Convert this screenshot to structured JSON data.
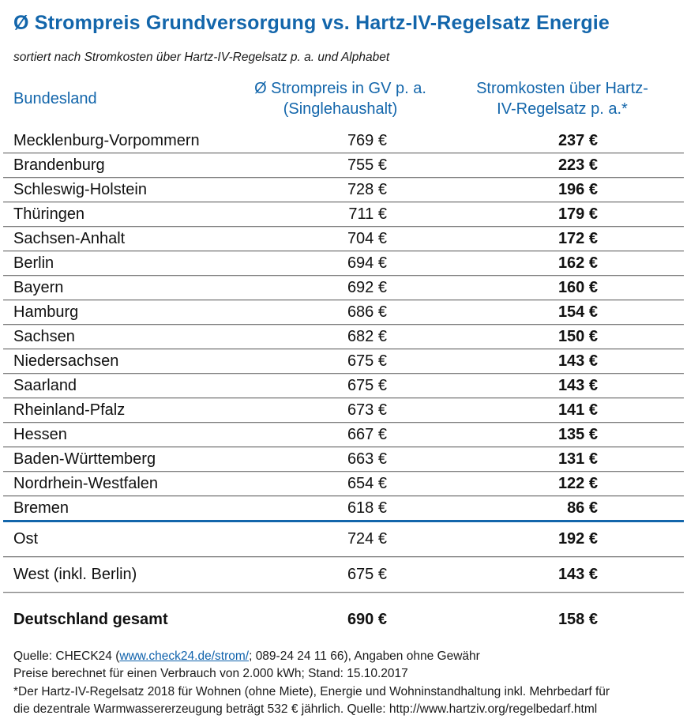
{
  "title": "Ø Strompreis Grundversorgung vs. Hartz-IV-Regelsatz Energie",
  "subtitle": "sortiert nach Stromkosten über Hartz-IV-Regelsatz p. a. und Alphabet",
  "colors": {
    "accent_blue": "#1366ab",
    "divider_gray": "#7d7d7d",
    "text_black": "#111111"
  },
  "table": {
    "headers": {
      "col1": "Bundesland",
      "col2_line1": "Ø Strompreis in GV p. a.",
      "col2_line2": "(Singlehaushalt)",
      "col3_line1": "Stromkosten über Hartz-",
      "col3_line2": "IV-Regelsatz p. a.*"
    },
    "rows": [
      {
        "name": "Mecklenburg-Vorpommern",
        "gv": "769 €",
        "over": "237 €"
      },
      {
        "name": "Brandenburg",
        "gv": "755 €",
        "over": "223 €"
      },
      {
        "name": "Schleswig-Holstein",
        "gv": "728 €",
        "over": "196 €"
      },
      {
        "name": "Thüringen",
        "gv": "711 €",
        "over": "179 €"
      },
      {
        "name": "Sachsen-Anhalt",
        "gv": "704 €",
        "over": "172 €"
      },
      {
        "name": "Berlin",
        "gv": "694 €",
        "over": "162 €"
      },
      {
        "name": "Bayern",
        "gv": "692 €",
        "over": "160 €"
      },
      {
        "name": "Hamburg",
        "gv": "686 €",
        "over": "154 €"
      },
      {
        "name": "Sachsen",
        "gv": "682 €",
        "over": "150 €"
      },
      {
        "name": "Niedersachsen",
        "gv": "675 €",
        "over": "143 €"
      },
      {
        "name": "Saarland",
        "gv": "675 €",
        "over": "143 €"
      },
      {
        "name": "Rheinland-Pfalz",
        "gv": "673 €",
        "over": "141 €"
      },
      {
        "name": "Hessen",
        "gv": "667 €",
        "over": "135 €"
      },
      {
        "name": "Baden-Württemberg",
        "gv": "663 €",
        "over": "131 €"
      },
      {
        "name": "Nordrhein-Westfalen",
        "gv": "654 €",
        "over": "122 €"
      },
      {
        "name": "Bremen",
        "gv": "618 €",
        "over": "86 €"
      }
    ],
    "region_rows": [
      {
        "name": "Ost",
        "gv": "724 €",
        "over": "192 €"
      },
      {
        "name": "West (inkl. Berlin)",
        "gv": "675 €",
        "over": "143 €"
      }
    ],
    "total_row": {
      "name": "Deutschland gesamt",
      "gv": "690 €",
      "over": "158 €"
    }
  },
  "footer": {
    "line1_prefix": "Quelle: CHECK24 (",
    "line1_link": "www.check24.de/strom/",
    "line1_suffix": "; 089-24 24 11 66), Angaben ohne Gewähr",
    "line2": "Preise berechnet für einen Verbrauch von 2.000 kWh; Stand: 15.10.2017",
    "line3": "*Der Hartz-IV-Regelsatz 2018 für Wohnen (ohne Miete), Energie und Wohninstandhaltung inkl. Mehrbedarf für",
    "line4": "die dezentrale Warmwassererzeugung beträgt 532 € jährlich. Quelle: http://www.hartziv.org/regelbedarf.html"
  },
  "chart_data": {
    "type": "table",
    "title": "Ø Strompreis Grundversorgung vs. Hartz-IV-Regelsatz Energie",
    "subtitle": "sortiert nach Stromkosten über Hartz-IV-Regelsatz p. a. und Alphabet",
    "columns": [
      "Bundesland",
      "Ø Strompreis in GV p. a. (Singlehaushalt)",
      "Stromkosten über Hartz-IV-Regelsatz p. a.*"
    ],
    "unit": "€",
    "rows": [
      [
        "Mecklenburg-Vorpommern",
        769,
        237
      ],
      [
        "Brandenburg",
        755,
        223
      ],
      [
        "Schleswig-Holstein",
        728,
        196
      ],
      [
        "Thüringen",
        711,
        179
      ],
      [
        "Sachsen-Anhalt",
        704,
        172
      ],
      [
        "Berlin",
        694,
        162
      ],
      [
        "Bayern",
        692,
        160
      ],
      [
        "Hamburg",
        686,
        154
      ],
      [
        "Sachsen",
        682,
        150
      ],
      [
        "Niedersachsen",
        675,
        143
      ],
      [
        "Saarland",
        675,
        143
      ],
      [
        "Rheinland-Pfalz",
        673,
        141
      ],
      [
        "Hessen",
        667,
        135
      ],
      [
        "Baden-Württemberg",
        663,
        131
      ],
      [
        "Nordrhein-Westfalen",
        654,
        122
      ],
      [
        "Bremen",
        618,
        86
      ],
      [
        "Ost",
        724,
        192
      ],
      [
        "West (inkl. Berlin)",
        675,
        143
      ],
      [
        "Deutschland gesamt",
        690,
        158
      ]
    ]
  }
}
